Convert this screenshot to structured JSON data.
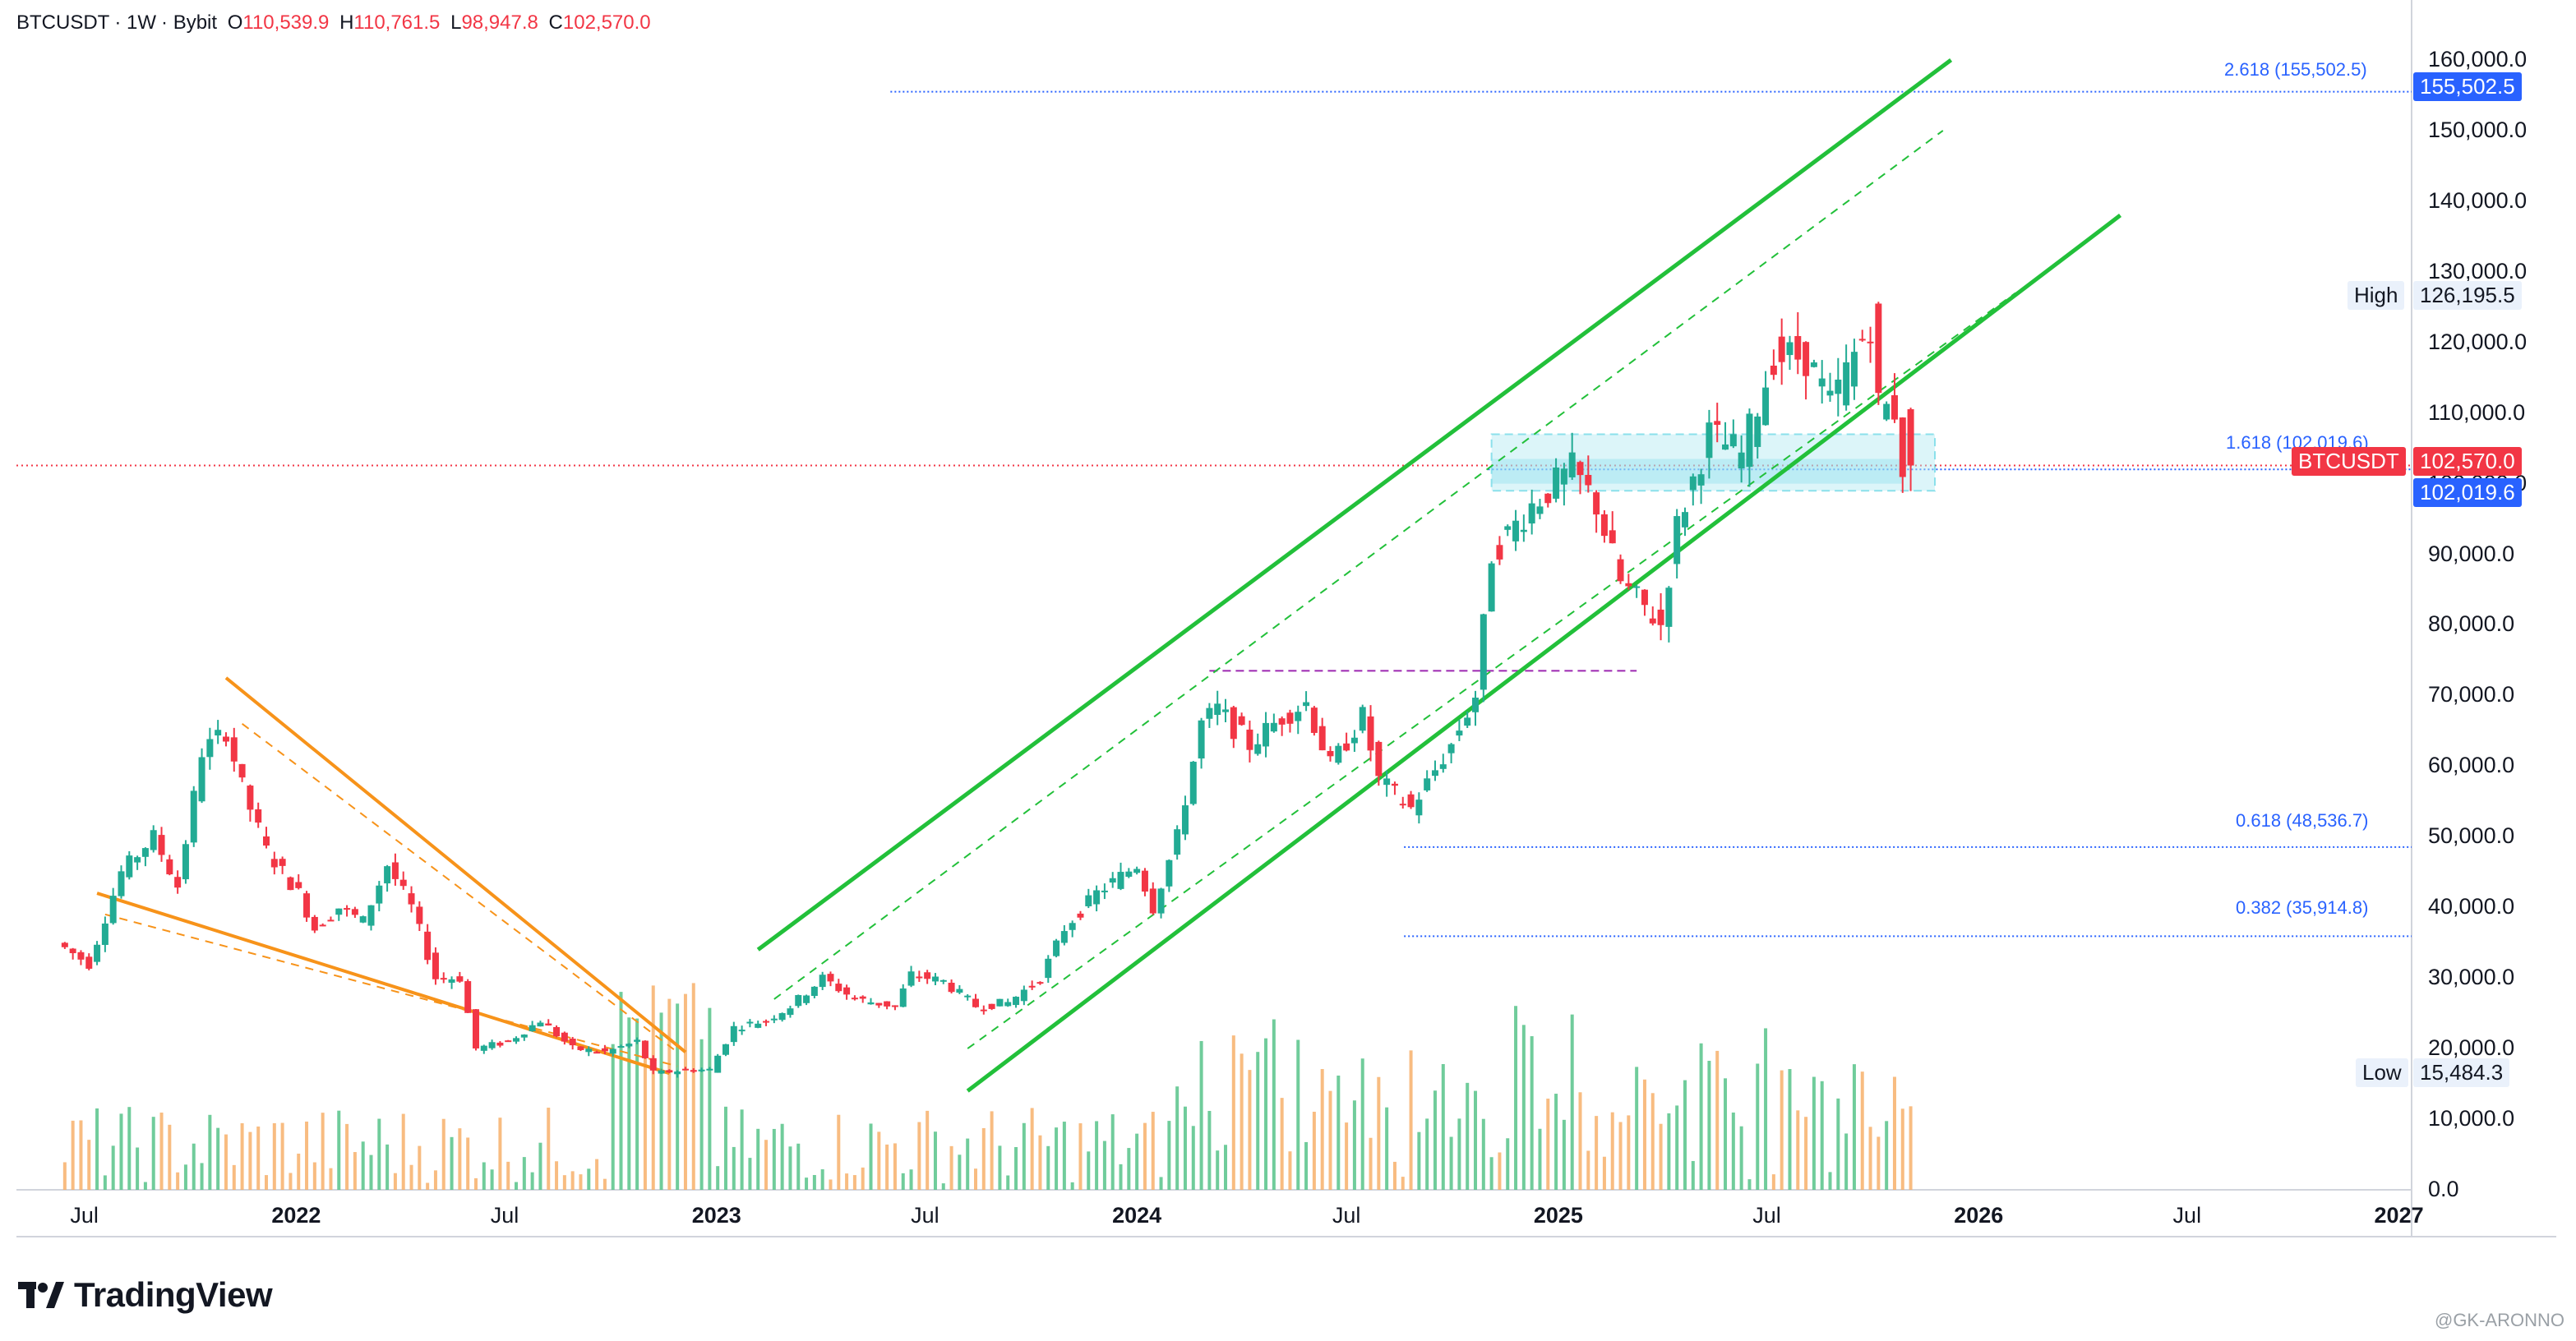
{
  "header": {
    "symbol": "BTCUSDT",
    "interval": "1W",
    "exchange": "Bybit",
    "open_label": "O",
    "open": "110,539.9",
    "high_label": "H",
    "high": "110,761.5",
    "low_label": "L",
    "low": "98,947.8",
    "close_label": "C",
    "close": "102,570.0"
  },
  "labels": {
    "fib_2618": "2.618 (155,502.5)",
    "fib_1618": "1.618 (102,019.6)",
    "fib_0618": "0.618 (48,536.7)",
    "fib_0382": "0.382 (35,914.8)",
    "tag_155": "155,502.5",
    "high_word": "High",
    "high_value": "126,195.5",
    "ticker_tag": "BTCUSDT",
    "price_tag": "102,570.0",
    "tag_102": "102,019.6",
    "low_word": "Low",
    "low_value": "15,484.3"
  },
  "brand": {
    "name": "TradingView",
    "watermark": "@GK-ARONNO"
  },
  "colors": {
    "up": "#26a69a",
    "candle_up": "#22ab94",
    "candle_down": "#f23645",
    "vol_up": "#57c38a",
    "vol_down": "#f7b06b",
    "channel": "#22c03a",
    "wedge": "#f7931a",
    "fib": "#2962ff",
    "current": "#f23645"
  },
  "chart_data": {
    "type": "candlestick",
    "title": "BTCUSDT · 1W · Bybit",
    "y_axis_ticks": [
      "160,000.0",
      "150,000.0",
      "140,000.0",
      "130,000.0",
      "120,000.0",
      "110,000.0",
      "100,000.0",
      "90,000.0",
      "80,000.0",
      "70,000.0",
      "60,000.0",
      "50,000.0",
      "40,000.0",
      "30,000.0",
      "20,000.0",
      "10,000.0",
      "0.0"
    ],
    "y_axis_values": [
      160000,
      150000,
      140000,
      130000,
      120000,
      110000,
      100000,
      90000,
      80000,
      70000,
      60000,
      50000,
      40000,
      30000,
      20000,
      10000,
      0
    ],
    "ylim": [
      0,
      165000
    ],
    "x_axis_ticks": [
      {
        "label": "Jul",
        "date": "2021-07-01",
        "year": false
      },
      {
        "label": "2022",
        "date": "2022-01-01",
        "year": true
      },
      {
        "label": "Jul",
        "date": "2022-07-01",
        "year": false
      },
      {
        "label": "2023",
        "date": "2023-01-01",
        "year": true
      },
      {
        "label": "Jul",
        "date": "2023-07-01",
        "year": false
      },
      {
        "label": "2024",
        "date": "2024-01-01",
        "year": true
      },
      {
        "label": "Jul",
        "date": "2024-07-01",
        "year": false
      },
      {
        "label": "2025",
        "date": "2025-01-01",
        "year": true
      },
      {
        "label": "Jul",
        "date": "2025-07-01",
        "year": false
      },
      {
        "label": "2026",
        "date": "2026-01-01",
        "year": true
      },
      {
        "label": "Jul",
        "date": "2026-07-01",
        "year": false
      },
      {
        "label": "2027",
        "date": "2027-01-01",
        "year": true
      }
    ],
    "xlim": [
      "2021-05-03",
      "2027-01-12"
    ],
    "series_close": [
      [
        "2021-06-14",
        35000
      ],
      [
        "2021-07-12",
        32000
      ],
      [
        "2021-08-09",
        45000
      ],
      [
        "2021-09-06",
        50000
      ],
      [
        "2021-09-27",
        43000
      ],
      [
        "2021-10-18",
        62000
      ],
      [
        "2021-11-08",
        65000
      ],
      [
        "2021-11-22",
        57000
      ],
      [
        "2021-12-13",
        48000
      ],
      [
        "2022-01-10",
        42000
      ],
      [
        "2022-01-24",
        37000
      ],
      [
        "2022-02-14",
        40000
      ],
      [
        "2022-03-07",
        38000
      ],
      [
        "2022-03-28",
        46000
      ],
      [
        "2022-04-18",
        40000
      ],
      [
        "2022-05-09",
        30000
      ],
      [
        "2022-05-30",
        30000
      ],
      [
        "2022-06-13",
        20000
      ],
      [
        "2022-07-11",
        21000
      ],
      [
        "2022-08-08",
        24000
      ],
      [
        "2022-09-05",
        20000
      ],
      [
        "2022-10-03",
        19500
      ],
      [
        "2022-10-31",
        21000
      ],
      [
        "2022-11-14",
        16500
      ],
      [
        "2022-12-12",
        17000
      ],
      [
        "2023-01-02",
        17000
      ],
      [
        "2023-01-23",
        23000
      ],
      [
        "2023-02-20",
        24000
      ],
      [
        "2023-03-13",
        26000
      ],
      [
        "2023-04-10",
        30000
      ],
      [
        "2023-05-08",
        27000
      ],
      [
        "2023-06-12",
        26000
      ],
      [
        "2023-06-26",
        30500
      ],
      [
        "2023-07-24",
        29500
      ],
      [
        "2023-08-21",
        26000
      ],
      [
        "2023-09-18",
        26500
      ],
      [
        "2023-10-16",
        30000
      ],
      [
        "2023-11-06",
        37000
      ],
      [
        "2023-12-04",
        42000
      ],
      [
        "2024-01-08",
        46000
      ],
      [
        "2024-01-22",
        40000
      ],
      [
        "2024-02-12",
        50000
      ],
      [
        "2024-03-04",
        66000
      ],
      [
        "2024-03-18",
        68000
      ],
      [
        "2024-04-15",
        63000
      ],
      [
        "2024-05-13",
        67000
      ],
      [
        "2024-06-03",
        69000
      ],
      [
        "2024-06-24",
        60000
      ],
      [
        "2024-07-22",
        67000
      ],
      [
        "2024-08-05",
        58000
      ],
      [
        "2024-09-02",
        54000
      ],
      [
        "2024-10-07",
        63000
      ],
      [
        "2024-10-28",
        70000
      ],
      [
        "2024-11-11",
        90000
      ],
      [
        "2024-12-16",
        97000
      ],
      [
        "2025-01-20",
        102000
      ],
      [
        "2025-02-10",
        97000
      ],
      [
        "2025-03-03",
        86000
      ],
      [
        "2025-04-07",
        80000
      ],
      [
        "2025-04-21",
        94000
      ],
      [
        "2025-05-19",
        107000
      ],
      [
        "2025-06-16",
        104000
      ],
      [
        "2025-07-14",
        118000
      ],
      [
        "2025-08-11",
        118000
      ],
      [
        "2025-09-01",
        111000
      ],
      [
        "2025-10-06",
        123000
      ],
      [
        "2025-10-13",
        111000
      ],
      [
        "2025-10-27",
        110500
      ],
      [
        "2025-11-03",
        102570
      ]
    ],
    "fib_levels": [
      {
        "level": "2.618",
        "value": 155502.5
      },
      {
        "level": "1.618",
        "value": 102019.6
      },
      {
        "level": "0.618",
        "value": 48536.7
      },
      {
        "level": "0.382",
        "value": 35914.8
      }
    ],
    "high": 126195.5,
    "low": 15484.3,
    "last": 102570.0
  }
}
